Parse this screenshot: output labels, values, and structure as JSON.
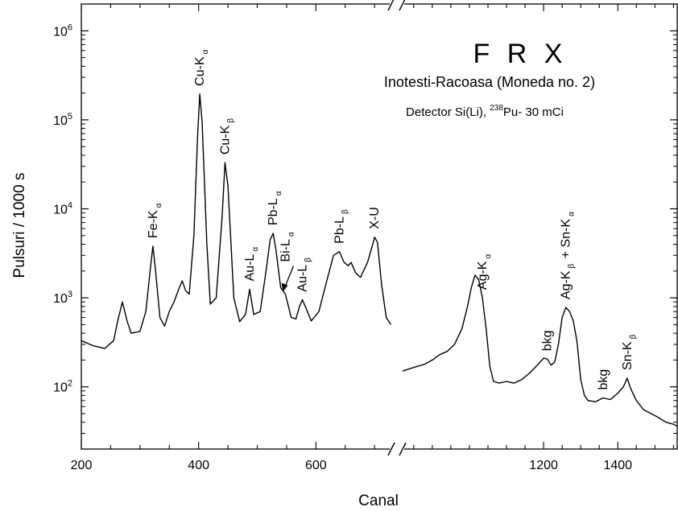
{
  "chart_data": {
    "type": "line",
    "title": "F R X",
    "subtitle": "Inotesti-Racoasa (Moneda no. 2)",
    "detector": {
      "prefix": "Detector Si(Li), ",
      "isotope_mass": "238",
      "isotope": "Pu- 30 mCi"
    },
    "xlabel": "Canal",
    "ylabel": "Pulsuri / 1000 s",
    "y_scale": "log",
    "ylim": [
      20,
      2000000
    ],
    "y_ticks": [
      {
        "value": 100,
        "base": "10",
        "exp": "2"
      },
      {
        "value": 1000,
        "base": "10",
        "exp": "3"
      },
      {
        "value": 10000,
        "base": "10",
        "exp": "4"
      },
      {
        "value": 100000,
        "base": "10",
        "exp": "5"
      },
      {
        "value": 1000000,
        "base": "10",
        "exp": "6"
      }
    ],
    "x_axis_broken": true,
    "x_segments": [
      {
        "xlim": [
          200,
          730
        ],
        "ticks": [
          200,
          400,
          600
        ]
      },
      {
        "xlim": [
          820,
          1560
        ],
        "ticks": [
          1200,
          1400
        ]
      }
    ],
    "grid": false,
    "peak_labels": [
      {
        "text": "Fe-K",
        "sub": "α",
        "x": 322
      },
      {
        "text": "Cu-K",
        "sub": "α",
        "x": 402
      },
      {
        "text": "Cu-K",
        "sub": "β",
        "x": 445
      },
      {
        "text": "Au-L",
        "sub": "α",
        "x": 487
      },
      {
        "text": "Pb-L",
        "sub": "α",
        "x": 527
      },
      {
        "text": "Bi-L",
        "sub": "α",
        "x": 548
      },
      {
        "text": "Au-L",
        "sub": "β",
        "x": 577
      },
      {
        "text": "Pb-L",
        "sub": "β",
        "x": 640
      },
      {
        "text": "X-U",
        "sub": "",
        "x": 700
      },
      {
        "text": "Ag-K",
        "sub": "α",
        "x": 1035
      },
      {
        "text": "bkg",
        "sub": "",
        "x": 1210
      },
      {
        "text": "Ag-K",
        "sub": "β",
        "extra": " + Sn-K",
        "extra_sub": "α",
        "x": 1260
      },
      {
        "text": "bkg",
        "sub": "",
        "x": 1360
      },
      {
        "text": "Sn-K",
        "sub": "β",
        "x": 1425
      }
    ],
    "series": [
      {
        "segment": 0,
        "x": [
          200,
          220,
          240,
          255,
          262,
          270,
          278,
          285,
          300,
          310,
          318,
          322,
          326,
          334,
          342,
          350,
          358,
          366,
          372,
          378,
          384,
          392,
          398,
          402,
          406,
          414,
          420,
          430,
          440,
          445,
          450,
          460,
          470,
          480,
          487,
          494,
          505,
          515,
          522,
          527,
          532,
          540,
          548,
          558,
          566,
          572,
          577,
          582,
          592,
          605,
          618,
          630,
          640,
          648,
          655,
          660,
          668,
          676,
          688,
          696,
          700,
          705,
          712,
          720,
          728
        ],
        "y": [
          330,
          290,
          270,
          330,
          550,
          900,
          550,
          400,
          420,
          700,
          2200,
          3800,
          2200,
          600,
          480,
          700,
          900,
          1250,
          1550,
          1200,
          1100,
          5000,
          60000,
          195000,
          95000,
          4000,
          850,
          1000,
          8000,
          33000,
          18000,
          1000,
          540,
          650,
          1250,
          650,
          700,
          2000,
          4500,
          5300,
          3400,
          1300,
          1100,
          600,
          580,
          800,
          950,
          800,
          550,
          700,
          1500,
          3000,
          3300,
          2500,
          2300,
          2500,
          1900,
          1700,
          2500,
          3800,
          4800,
          4200,
          1400,
          600,
          500
        ]
      },
      {
        "segment": 1,
        "x": [
          820,
          840,
          860,
          880,
          900,
          920,
          940,
          960,
          980,
          995,
          1005,
          1015,
          1025,
          1035,
          1045,
          1055,
          1065,
          1080,
          1100,
          1120,
          1140,
          1160,
          1180,
          1200,
          1210,
          1220,
          1230,
          1240,
          1250,
          1260,
          1270,
          1280,
          1290,
          1300,
          1310,
          1320,
          1340,
          1360,
          1380,
          1400,
          1415,
          1425,
          1435,
          1450,
          1470,
          1490,
          1510,
          1530,
          1550,
          1560
        ],
        "y": [
          150,
          160,
          170,
          180,
          200,
          230,
          250,
          300,
          450,
          800,
          1300,
          1800,
          1600,
          1000,
          450,
          170,
          115,
          110,
          115,
          110,
          120,
          140,
          170,
          210,
          205,
          175,
          190,
          300,
          600,
          780,
          700,
          550,
          320,
          120,
          80,
          70,
          68,
          75,
          72,
          85,
          100,
          125,
          95,
          70,
          55,
          50,
          45,
          40,
          38,
          36
        ]
      }
    ]
  }
}
